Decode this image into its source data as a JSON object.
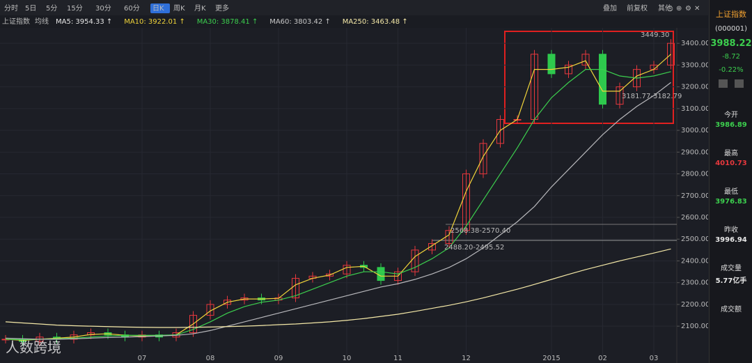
{
  "toolbar": {
    "tabs": [
      "分时",
      "5日",
      "5分",
      "15分",
      "30分",
      "60分",
      "日K",
      "周K",
      "月K",
      "更多"
    ],
    "active_index": 6,
    "right_tools": [
      "叠加",
      "前复权",
      "其他"
    ]
  },
  "ma_bar": {
    "symbol": "上证指数",
    "label": "均线",
    "items": [
      {
        "text": "MA5: 3954.33 ↑",
        "color": "#e8e8e8"
      },
      {
        "text": "MA10: 3922.01 ↑",
        "color": "#f0d43a"
      },
      {
        "text": "MA30: 3878.41 ↑",
        "color": "#3ccf4e"
      },
      {
        "text": "MA60: 3803.42 ↑",
        "color": "#c8c8c8"
      },
      {
        "text": "MA250: 3463.48 ↑",
        "color": "#f5e9a8"
      }
    ]
  },
  "chart_data": {
    "type": "candlestick",
    "categories": [
      null,
      null,
      null,
      null,
      null,
      null,
      null,
      null,
      "07",
      null,
      null,
      null,
      "08",
      null,
      null,
      null,
      "09",
      null,
      null,
      null,
      "10",
      null,
      null,
      "11",
      null,
      null,
      null,
      "12",
      null,
      null,
      null,
      null,
      "2015",
      null,
      null,
      "02",
      null,
      null,
      "03",
      null
    ],
    "values": [
      2040,
      2030,
      2050,
      2040,
      2060,
      2070,
      2060,
      2050,
      2060,
      2050,
      2070,
      2150,
      2200,
      2220,
      2230,
      2220,
      2230,
      2320,
      2330,
      2340,
      2380,
      2370,
      2310,
      2350,
      2450,
      2480,
      2540,
      2800,
      2940,
      3050,
      3050,
      3350,
      3260,
      3300,
      3350,
      3120,
      3200,
      3280,
      3300,
      3400
    ],
    "up_color": "#e8383d",
    "down_color": "#2ec94d",
    "series": [
      {
        "name": "MA10",
        "color": "#f0d43a",
        "values": [
          2040,
          2035,
          2040,
          2045,
          2050,
          2062,
          2065,
          2058,
          2055,
          2055,
          2060,
          2110,
          2170,
          2210,
          2225,
          2225,
          2228,
          2290,
          2320,
          2335,
          2370,
          2375,
          2330,
          2330,
          2420,
          2470,
          2520,
          2720,
          2880,
          3000,
          3050,
          3280,
          3280,
          3290,
          3320,
          3180,
          3180,
          3250,
          3280,
          3350
        ]
      },
      {
        "name": "MA30",
        "color": "#3ccf4e",
        "values": [
          2040,
          2038,
          2040,
          2042,
          2045,
          2050,
          2055,
          2058,
          2058,
          2058,
          2060,
          2085,
          2120,
          2160,
          2190,
          2210,
          2220,
          2240,
          2270,
          2300,
          2330,
          2350,
          2350,
          2340,
          2370,
          2410,
          2460,
          2560,
          2680,
          2800,
          2920,
          3050,
          3150,
          3220,
          3280,
          3280,
          3250,
          3240,
          3250,
          3270
        ]
      },
      {
        "name": "MA60",
        "color": "#b8b8bc",
        "values": [
          2045,
          2042,
          2040,
          2040,
          2042,
          2045,
          2048,
          2050,
          2052,
          2055,
          2058,
          2065,
          2080,
          2100,
          2120,
          2140,
          2160,
          2180,
          2200,
          2220,
          2240,
          2260,
          2280,
          2295,
          2315,
          2340,
          2370,
          2410,
          2460,
          2520,
          2580,
          2650,
          2740,
          2820,
          2900,
          2980,
          3050,
          3110,
          3160,
          3220
        ]
      },
      {
        "name": "MA250",
        "color": "#f5e9a8",
        "values": [
          2120,
          2115,
          2110,
          2105,
          2102,
          2100,
          2098,
          2096,
          2095,
          2094,
          2094,
          2095,
          2096,
          2098,
          2100,
          2103,
          2107,
          2110,
          2115,
          2120,
          2127,
          2135,
          2145,
          2155,
          2168,
          2182,
          2196,
          2212,
          2230,
          2250,
          2270,
          2292,
          2315,
          2338,
          2360,
          2380,
          2400,
          2418,
          2436,
          2455
        ]
      }
    ],
    "ylim": [
      1966,
      3471
    ],
    "yticks": [
      {
        "value": 2100,
        "label": "2100.00"
      },
      {
        "value": 2200,
        "label": "2200.00"
      },
      {
        "value": 2300,
        "label": "2300.00"
      },
      {
        "value": 2400,
        "label": "2400.00"
      },
      {
        "value": 2500,
        "label": "2500.00"
      },
      {
        "value": 2600,
        "label": "2600.00"
      },
      {
        "value": 2700,
        "label": "2700.00"
      },
      {
        "value": 2800,
        "label": "2800.00"
      },
      {
        "value": 2900,
        "label": "2900.00"
      },
      {
        "value": 3000,
        "label": "3000.00"
      },
      {
        "value": 3100,
        "label": "3100.00"
      },
      {
        "value": 3200,
        "label": "3200.00"
      },
      {
        "value": 3300,
        "label": "3300.00"
      },
      {
        "value": 3400,
        "label": "3400.00"
      }
    ],
    "grid": true,
    "annotations": [
      "3449.30",
      "3181.77-3182.79",
      "2568.38-2570.40",
      "2488.20-2495.52"
    ]
  },
  "quote": {
    "name": "上证指数",
    "code": "(000001)",
    "price": "3988.22",
    "change": "-8.72",
    "percent": "-0.22%",
    "stats": [
      {
        "label": "今开",
        "value": "3986.89",
        "color": "#3ccf4e"
      },
      {
        "label": "最高",
        "value": "4010.73",
        "color": "#e8383d"
      },
      {
        "label": "最低",
        "value": "3976.83",
        "color": "#3ccf4e"
      },
      {
        "label": "昨收",
        "value": "3996.94",
        "color": "#e8e8e8"
      },
      {
        "label": "成交量",
        "value": "5.77亿手",
        "color": "#e8e8e8"
      },
      {
        "label": "成交额",
        "value": "",
        "color": "#e8e8e8"
      }
    ]
  },
  "watermark": "人数跨境"
}
